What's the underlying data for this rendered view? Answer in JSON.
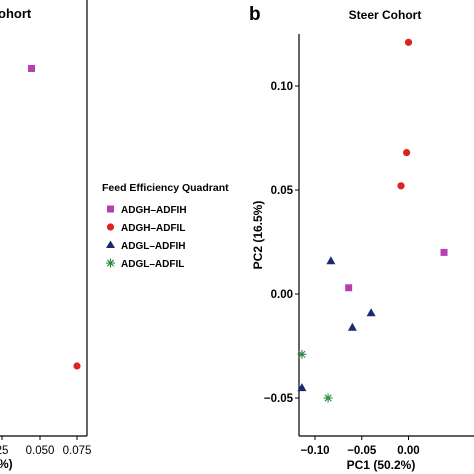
{
  "left_panel": {
    "title_fragment": "ohort",
    "y_label_fragment": "%)",
    "x_tick_labels": [
      "25",
      "0.050",
      "0.075"
    ],
    "points": [
      {
        "group": "ADGH–ADFIH",
        "x": 0.0475,
        "y": "upper"
      },
      {
        "group": "ADGH–ADFIL",
        "x": 0.075,
        "y": "lower"
      }
    ]
  },
  "legend": {
    "title": "Feed Efficiency Quadrant",
    "entries": [
      {
        "label": "ADGH–ADFIH",
        "color": "#b540b5",
        "shape": "square"
      },
      {
        "label": "ADGH–ADFIL",
        "color": "#dd2222",
        "shape": "circle"
      },
      {
        "label": "ADGL–ADFIH",
        "color": "#1a2a6e",
        "shape": "triangle"
      },
      {
        "label": "ADGL–ADFIL",
        "color": "#2a8a3a",
        "shape": "asterisk"
      }
    ]
  },
  "chart_data": {
    "type": "scatter",
    "panel_letter": "b",
    "title": "Steer Cohort",
    "xlabel": "PC1 (50.2%)",
    "ylabel": "PC2 (16.5%)",
    "xlim": [
      -0.13,
      0.05
    ],
    "ylim": [
      -0.075,
      0.125
    ],
    "x_ticks": [
      -0.1,
      -0.05,
      0.0
    ],
    "x_tick_labels": [
      "−0.10",
      "−0.05",
      "0.00"
    ],
    "y_ticks": [
      -0.05,
      0.0,
      0.05,
      0.1
    ],
    "y_tick_labels": [
      "−0.05",
      "0.00",
      "0.05",
      "0.10"
    ],
    "grid": false,
    "series": [
      {
        "name": "ADGH–ADFIH",
        "color": "#b540b5",
        "marker": "square",
        "x": [
          0.038,
          -0.064
        ],
        "y": [
          0.02,
          0.003
        ]
      },
      {
        "name": "ADGH–ADFIL",
        "color": "#dd2222",
        "marker": "circle",
        "x": [
          0.0,
          -0.002,
          -0.008
        ],
        "y": [
          0.121,
          0.068,
          0.052
        ]
      },
      {
        "name": "ADGL–ADFIH",
        "color": "#1a2a6e",
        "marker": "triangle",
        "x": [
          -0.083,
          -0.04,
          -0.06,
          -0.114
        ],
        "y": [
          0.016,
          -0.009,
          -0.016,
          -0.045
        ]
      },
      {
        "name": "ADGL–ADFIL",
        "color": "#2a8a3a",
        "marker": "asterisk",
        "x": [
          -0.114,
          -0.086
        ],
        "y": [
          -0.029,
          -0.05
        ]
      }
    ]
  }
}
